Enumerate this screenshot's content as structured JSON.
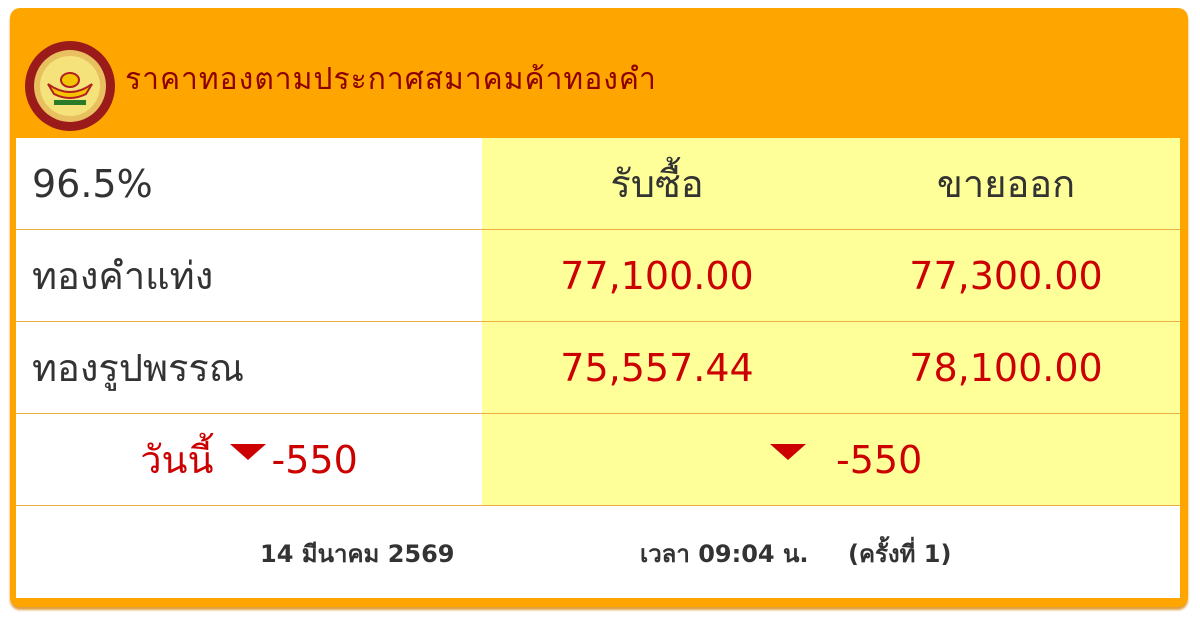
{
  "header": {
    "title": "ราคาทองตามประกาศสมาคมค้าทองคำ",
    "logo": "gold-traders-association-logo"
  },
  "table": {
    "purity": "96.5%",
    "buy_label": "รับซื้อ",
    "sell_label": "ขายออก",
    "rows": [
      {
        "label": "ทองคำแท่ง",
        "buy": "77,100.00",
        "sell": "77,300.00"
      },
      {
        "label": "ทองรูปพรรณ",
        "buy": "75,557.44",
        "sell": "78,100.00"
      }
    ],
    "change": {
      "today_label": "วันนี้",
      "today_value": "-550",
      "value": "-550",
      "direction": "down"
    }
  },
  "footer": {
    "date": "14 มีนาคม 2569",
    "time": "เวลา 09:04 น.",
    "round": "(ครั้งที่ 1)"
  },
  "colors": {
    "frame": "#FFA500",
    "title": "#8B0000",
    "price": "#CC0000",
    "highlight": "#FFFF99"
  }
}
